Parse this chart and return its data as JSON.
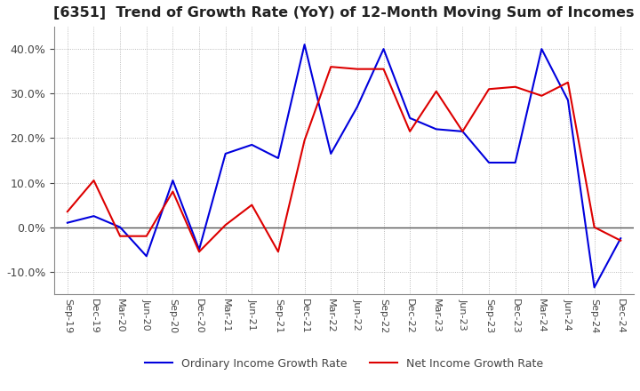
{
  "title": "[6351]  Trend of Growth Rate (YoY) of 12-Month Moving Sum of Incomes",
  "title_fontsize": 11.5,
  "ylim": [
    -0.15,
    0.45
  ],
  "yticks": [
    -0.1,
    0.0,
    0.1,
    0.2,
    0.3,
    0.4
  ],
  "grid_color": "#aaaaaa",
  "background_color": "#ffffff",
  "ordinary_income_color": "#0000dd",
  "net_income_color": "#dd0000",
  "ordinary_income_label": "Ordinary Income Growth Rate",
  "net_income_label": "Net Income Growth Rate",
  "x_labels": [
    "Sep-19",
    "Dec-19",
    "Mar-20",
    "Jun-20",
    "Sep-20",
    "Dec-20",
    "Mar-21",
    "Jun-21",
    "Sep-21",
    "Dec-21",
    "Mar-22",
    "Jun-22",
    "Sep-22",
    "Dec-22",
    "Mar-23",
    "Jun-23",
    "Sep-23",
    "Dec-23",
    "Mar-24",
    "Jun-24",
    "Sep-24",
    "Dec-24"
  ],
  "ordinary_income": [
    0.01,
    0.025,
    0.0,
    -0.065,
    0.105,
    -0.05,
    0.165,
    0.185,
    0.155,
    0.41,
    0.165,
    0.27,
    0.4,
    0.245,
    0.22,
    0.215,
    0.145,
    0.145,
    0.4,
    0.285,
    -0.135,
    -0.025
  ],
  "net_income": [
    0.035,
    0.105,
    -0.02,
    -0.02,
    0.08,
    -0.055,
    0.005,
    0.05,
    -0.055,
    0.195,
    0.36,
    0.355,
    0.355,
    0.215,
    0.305,
    0.215,
    0.31,
    0.315,
    0.295,
    0.325,
    0.0,
    -0.03
  ]
}
